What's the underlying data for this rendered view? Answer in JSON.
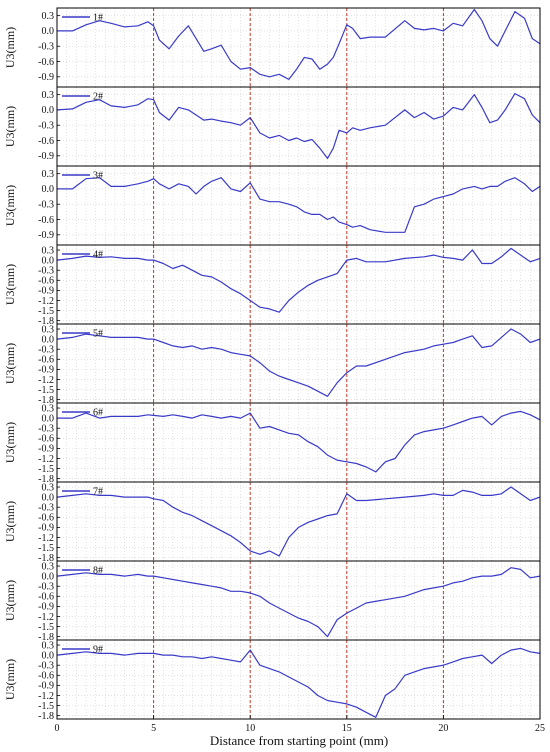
{
  "chart_data": {
    "type": "line",
    "xlabel": "Distance from starting point (mm)",
    "xlim": [
      0,
      25
    ],
    "xticks": [
      "0",
      "5",
      "10",
      "15",
      "20",
      "25"
    ],
    "reference_lines_x": [
      5,
      10,
      15,
      20
    ],
    "grid": true,
    "line_color": "#3a3ac8",
    "ref_line_color": "#c0392b",
    "panels": [
      {
        "name": "1#",
        "ylabel": "U3(mm)",
        "ylim": [
          -1.1,
          0.45
        ],
        "yticks": [
          "0.3",
          "0.0",
          "-0.3",
          "-0.6",
          "-0.9"
        ],
        "x": [
          0,
          0.8,
          1.5,
          2.2,
          2.8,
          3.5,
          4.2,
          4.7,
          5.0,
          5.3,
          5.8,
          6.3,
          6.8,
          7.2,
          7.6,
          8.0,
          8.5,
          9.0,
          9.5,
          10.0,
          10.5,
          11.0,
          11.5,
          12.0,
          12.4,
          12.8,
          13.2,
          13.6,
          14.0,
          14.3,
          14.6,
          15.0,
          15.3,
          15.7,
          16.2,
          17.0,
          18.0,
          18.5,
          19.0,
          19.5,
          20.0,
          20.5,
          21.0,
          21.6,
          22.0,
          22.4,
          22.8,
          23.2,
          23.7,
          24.2,
          24.6,
          25.0
        ],
        "y": [
          0.0,
          0.0,
          0.12,
          0.2,
          0.15,
          0.08,
          0.1,
          0.18,
          0.1,
          -0.18,
          -0.35,
          -0.1,
          0.1,
          -0.15,
          -0.4,
          -0.35,
          -0.28,
          -0.6,
          -0.75,
          -0.72,
          -0.85,
          -0.9,
          -0.85,
          -0.95,
          -0.75,
          -0.52,
          -0.55,
          -0.75,
          -0.65,
          -0.52,
          -0.25,
          0.12,
          0.05,
          -0.15,
          -0.12,
          -0.12,
          0.2,
          0.05,
          0.02,
          0.05,
          0.0,
          0.15,
          0.1,
          0.42,
          0.2,
          -0.15,
          -0.3,
          0.0,
          0.38,
          0.25,
          -0.15,
          -0.25
        ]
      },
      {
        "name": "2#",
        "ylabel": "U3(mm)",
        "ylim": [
          -1.1,
          0.45
        ],
        "yticks": [
          "0.3",
          "0.0",
          "-0.3",
          "-0.6",
          "-0.9"
        ],
        "x": [
          0,
          0.8,
          1.5,
          2.2,
          2.8,
          3.5,
          4.2,
          4.7,
          5.0,
          5.3,
          5.8,
          6.3,
          6.8,
          7.2,
          7.6,
          8.0,
          8.5,
          9.0,
          9.5,
          10.0,
          10.5,
          11.0,
          11.5,
          12.0,
          12.4,
          12.8,
          13.2,
          13.6,
          14.0,
          14.3,
          14.6,
          15.0,
          15.3,
          15.7,
          16.2,
          17.0,
          18.0,
          18.5,
          19.0,
          19.5,
          20.0,
          20.5,
          21.0,
          21.6,
          22.0,
          22.4,
          22.8,
          23.2,
          23.7,
          24.2,
          24.6,
          25.0
        ],
        "y": [
          0.0,
          0.02,
          0.15,
          0.2,
          0.08,
          0.05,
          0.1,
          0.22,
          0.2,
          -0.05,
          -0.2,
          0.05,
          0.0,
          -0.1,
          -0.2,
          -0.18,
          -0.22,
          -0.25,
          -0.3,
          -0.15,
          -0.45,
          -0.55,
          -0.5,
          -0.6,
          -0.55,
          -0.62,
          -0.58,
          -0.75,
          -0.95,
          -0.75,
          -0.4,
          -0.45,
          -0.35,
          -0.4,
          -0.35,
          -0.3,
          0.0,
          -0.15,
          -0.05,
          -0.18,
          -0.12,
          0.05,
          0.0,
          0.3,
          0.05,
          -0.25,
          -0.2,
          0.0,
          0.32,
          0.22,
          -0.1,
          -0.25
        ]
      },
      {
        "name": "3#",
        "ylabel": "U3(mm)",
        "ylim": [
          -1.1,
          0.45
        ],
        "yticks": [
          "0.3",
          "0.0",
          "-0.3",
          "-0.6",
          "-0.9"
        ],
        "x": [
          0,
          0.8,
          1.5,
          2.2,
          2.8,
          3.5,
          4.2,
          4.7,
          5.0,
          5.3,
          5.8,
          6.3,
          6.8,
          7.2,
          7.6,
          8.0,
          8.5,
          9.0,
          9.5,
          10.0,
          10.5,
          11.0,
          11.5,
          12.0,
          12.4,
          12.8,
          13.2,
          13.6,
          14.0,
          14.3,
          14.6,
          15.0,
          15.3,
          15.7,
          16.2,
          17.0,
          18.0,
          18.5,
          19.0,
          19.5,
          20.0,
          20.5,
          21.0,
          21.6,
          22.0,
          22.4,
          22.8,
          23.2,
          23.7,
          24.2,
          24.6,
          25.0
        ],
        "y": [
          0.0,
          0.0,
          0.2,
          0.22,
          0.05,
          0.05,
          0.1,
          0.15,
          0.2,
          0.1,
          0.0,
          0.1,
          0.05,
          -0.1,
          0.05,
          0.15,
          0.22,
          0.0,
          -0.05,
          0.12,
          -0.2,
          -0.25,
          -0.25,
          -0.3,
          -0.35,
          -0.45,
          -0.5,
          -0.5,
          -0.6,
          -0.55,
          -0.65,
          -0.7,
          -0.75,
          -0.72,
          -0.8,
          -0.85,
          -0.85,
          -0.35,
          -0.3,
          -0.2,
          -0.15,
          -0.1,
          0.0,
          0.05,
          0.0,
          0.05,
          0.05,
          0.15,
          0.22,
          0.1,
          -0.05,
          0.05
        ]
      },
      {
        "name": "4#",
        "ylabel": "U3(mm)",
        "ylim": [
          -1.9,
          0.45
        ],
        "yticks": [
          "0.3",
          "0.0",
          "-0.3",
          "-0.6",
          "-0.9",
          "-1.2",
          "-1.5",
          "-1.8"
        ],
        "x": [
          0,
          0.8,
          1.5,
          2.2,
          2.8,
          3.5,
          4.2,
          4.7,
          5.0,
          5.5,
          6.0,
          6.5,
          7.0,
          7.5,
          8.0,
          8.5,
          9.0,
          9.5,
          10.0,
          10.5,
          11.0,
          11.5,
          12.0,
          12.5,
          13.0,
          13.5,
          14.0,
          14.5,
          15.0,
          15.5,
          16.0,
          17.0,
          18.0,
          19.0,
          19.5,
          20.0,
          20.5,
          21.0,
          21.5,
          22.0,
          22.5,
          23.0,
          23.5,
          24.0,
          24.5,
          25.0
        ],
        "y": [
          0.0,
          0.05,
          0.12,
          0.08,
          0.1,
          0.05,
          0.05,
          0.0,
          0.0,
          -0.1,
          -0.25,
          -0.15,
          -0.3,
          -0.45,
          -0.5,
          -0.65,
          -0.85,
          -1.0,
          -1.2,
          -1.4,
          -1.45,
          -1.55,
          -1.2,
          -0.95,
          -0.75,
          -0.6,
          -0.5,
          -0.4,
          0.0,
          0.05,
          -0.05,
          -0.05,
          0.05,
          0.1,
          0.15,
          0.08,
          0.05,
          0.0,
          0.3,
          -0.1,
          -0.1,
          0.1,
          0.35,
          0.15,
          -0.05,
          0.05
        ]
      },
      {
        "name": "5#",
        "ylabel": "U3(mm)",
        "ylim": [
          -1.9,
          0.45
        ],
        "yticks": [
          "0.3",
          "0.0",
          "-0.3",
          "-0.6",
          "-0.9",
          "-1.2",
          "-1.5",
          "-1.8"
        ],
        "x": [
          0,
          0.8,
          1.5,
          2.2,
          2.8,
          3.5,
          4.2,
          4.7,
          5.0,
          5.5,
          6.0,
          6.5,
          7.0,
          7.5,
          8.0,
          8.5,
          9.0,
          9.5,
          10.0,
          10.5,
          11.0,
          11.5,
          12.0,
          12.5,
          13.0,
          13.5,
          14.0,
          14.5,
          15.0,
          15.5,
          16.0,
          17.0,
          18.0,
          19.0,
          19.5,
          20.0,
          20.5,
          21.0,
          21.5,
          22.0,
          22.5,
          23.0,
          23.5,
          24.0,
          24.5,
          25.0
        ],
        "y": [
          0.0,
          0.05,
          0.15,
          0.1,
          0.05,
          0.05,
          0.05,
          0.0,
          0.0,
          -0.1,
          -0.2,
          -0.25,
          -0.2,
          -0.3,
          -0.25,
          -0.3,
          -0.4,
          -0.45,
          -0.5,
          -0.7,
          -0.95,
          -1.1,
          -1.2,
          -1.3,
          -1.4,
          -1.55,
          -1.7,
          -1.3,
          -1.0,
          -0.8,
          -0.8,
          -0.6,
          -0.4,
          -0.3,
          -0.2,
          -0.15,
          -0.1,
          0.0,
          0.1,
          -0.25,
          -0.2,
          0.05,
          0.3,
          0.15,
          -0.1,
          0.0
        ]
      },
      {
        "name": "6#",
        "ylabel": "U3(mm)",
        "ylim": [
          -1.9,
          0.45
        ],
        "yticks": [
          "0.3",
          "0.0",
          "-0.3",
          "-0.6",
          "-0.9",
          "-1.2",
          "-1.5",
          "-1.8"
        ],
        "x": [
          0,
          0.8,
          1.5,
          2.2,
          2.8,
          3.5,
          4.2,
          4.7,
          5.0,
          5.5,
          6.0,
          6.5,
          7.0,
          7.5,
          8.0,
          8.5,
          9.0,
          9.5,
          10.0,
          10.5,
          11.0,
          11.5,
          12.0,
          12.5,
          13.0,
          13.5,
          14.0,
          14.5,
          15.0,
          15.5,
          16.0,
          16.5,
          17.0,
          17.5,
          18.0,
          18.5,
          19.0,
          19.5,
          20.0,
          20.5,
          21.0,
          21.5,
          22.0,
          22.5,
          23.0,
          23.5,
          24.0,
          24.5,
          25.0
        ],
        "y": [
          0.0,
          0.0,
          0.15,
          0.0,
          0.05,
          0.05,
          0.05,
          0.1,
          0.08,
          0.05,
          0.1,
          0.05,
          0.0,
          0.1,
          0.05,
          0.0,
          0.05,
          0.0,
          0.15,
          -0.3,
          -0.25,
          -0.35,
          -0.45,
          -0.5,
          -0.7,
          -0.85,
          -1.1,
          -1.25,
          -1.3,
          -1.35,
          -1.45,
          -1.6,
          -1.3,
          -1.2,
          -0.8,
          -0.5,
          -0.4,
          -0.35,
          -0.3,
          -0.2,
          -0.1,
          0.0,
          0.05,
          -0.2,
          0.05,
          0.15,
          0.2,
          0.1,
          -0.05
        ]
      },
      {
        "name": "7#",
        "ylabel": "U3(mm)",
        "ylim": [
          -1.9,
          0.45
        ],
        "yticks": [
          "0.3",
          "0.0",
          "-0.3",
          "-0.6",
          "-0.9",
          "-1.2",
          "-1.5",
          "-1.8"
        ],
        "x": [
          0,
          0.8,
          1.5,
          2.2,
          2.8,
          3.5,
          4.2,
          4.7,
          5.0,
          5.5,
          6.0,
          6.5,
          7.0,
          7.5,
          8.0,
          8.5,
          9.0,
          9.5,
          10.0,
          10.5,
          11.0,
          11.5,
          12.0,
          12.5,
          13.0,
          13.5,
          14.0,
          14.5,
          15.0,
          15.5,
          16.0,
          17.0,
          18.0,
          19.0,
          19.5,
          20.0,
          20.5,
          21.0,
          21.5,
          22.0,
          22.5,
          23.0,
          23.5,
          24.0,
          24.5,
          25.0
        ],
        "y": [
          0.0,
          0.05,
          0.1,
          0.05,
          0.05,
          0.0,
          0.0,
          0.0,
          -0.05,
          -0.1,
          -0.3,
          -0.45,
          -0.55,
          -0.7,
          -0.85,
          -1.0,
          -1.15,
          -1.35,
          -1.6,
          -1.7,
          -1.6,
          -1.75,
          -1.2,
          -0.9,
          -0.75,
          -0.65,
          -0.55,
          -0.5,
          0.1,
          -0.1,
          -0.1,
          -0.05,
          0.0,
          0.05,
          0.1,
          0.05,
          0.05,
          0.2,
          0.15,
          0.05,
          0.05,
          0.1,
          0.3,
          0.1,
          -0.1,
          0.0
        ]
      },
      {
        "name": "8#",
        "ylabel": "U3(mm)",
        "ylim": [
          -1.9,
          0.45
        ],
        "yticks": [
          "0.3",
          "0.0",
          "-0.3",
          "-0.6",
          "-0.9",
          "-1.2",
          "-1.5",
          "-1.8"
        ],
        "x": [
          0,
          0.8,
          1.5,
          2.2,
          2.8,
          3.5,
          4.2,
          4.7,
          5.0,
          5.5,
          6.0,
          6.5,
          7.0,
          7.5,
          8.0,
          8.5,
          9.0,
          9.5,
          10.0,
          10.5,
          11.0,
          11.5,
          12.0,
          12.5,
          13.0,
          13.5,
          14.0,
          14.5,
          15.0,
          15.5,
          16.0,
          17.0,
          18.0,
          19.0,
          19.5,
          20.0,
          20.5,
          21.0,
          21.5,
          22.0,
          22.5,
          23.0,
          23.5,
          24.0,
          24.5,
          25.0
        ],
        "y": [
          0.0,
          0.05,
          0.1,
          0.05,
          0.05,
          0.0,
          0.05,
          0.0,
          0.0,
          -0.05,
          -0.1,
          -0.15,
          -0.2,
          -0.25,
          -0.3,
          -0.35,
          -0.45,
          -0.45,
          -0.5,
          -0.6,
          -0.8,
          -0.95,
          -1.1,
          -1.25,
          -1.35,
          -1.5,
          -1.8,
          -1.3,
          -1.1,
          -0.95,
          -0.8,
          -0.7,
          -0.6,
          -0.4,
          -0.35,
          -0.3,
          -0.2,
          -0.15,
          -0.05,
          0.0,
          0.0,
          0.05,
          0.25,
          0.2,
          -0.05,
          0.0
        ]
      },
      {
        "name": "9#",
        "ylabel": "U3(mm)",
        "ylim": [
          -1.9,
          0.45
        ],
        "yticks": [
          "0.3",
          "0.0",
          "-0.3",
          "-0.6",
          "-0.9",
          "-1.2",
          "-1.5",
          "-1.8"
        ],
        "x": [
          0,
          0.8,
          1.5,
          2.2,
          2.8,
          3.5,
          4.2,
          4.7,
          5.0,
          5.5,
          6.0,
          6.5,
          7.0,
          7.5,
          8.0,
          8.5,
          9.0,
          9.5,
          10.0,
          10.5,
          11.0,
          11.5,
          12.0,
          12.5,
          13.0,
          13.5,
          14.0,
          14.5,
          15.0,
          15.5,
          16.0,
          16.5,
          17.0,
          17.5,
          18.0,
          18.5,
          19.0,
          19.5,
          20.0,
          20.5,
          21.0,
          21.5,
          22.0,
          22.5,
          23.0,
          23.5,
          24.0,
          24.5,
          25.0
        ],
        "y": [
          0.0,
          0.05,
          0.1,
          0.05,
          0.05,
          0.0,
          0.05,
          0.05,
          0.05,
          0.0,
          0.0,
          -0.05,
          -0.05,
          -0.1,
          -0.05,
          -0.1,
          -0.15,
          -0.2,
          0.15,
          -0.3,
          -0.4,
          -0.5,
          -0.65,
          -0.8,
          -0.95,
          -1.2,
          -1.35,
          -1.4,
          -1.45,
          -1.55,
          -1.7,
          -1.85,
          -1.2,
          -1.0,
          -0.6,
          -0.5,
          -0.4,
          -0.35,
          -0.3,
          -0.2,
          -0.1,
          -0.05,
          0.0,
          -0.25,
          0.0,
          0.15,
          0.2,
          0.1,
          0.05
        ]
      }
    ]
  }
}
